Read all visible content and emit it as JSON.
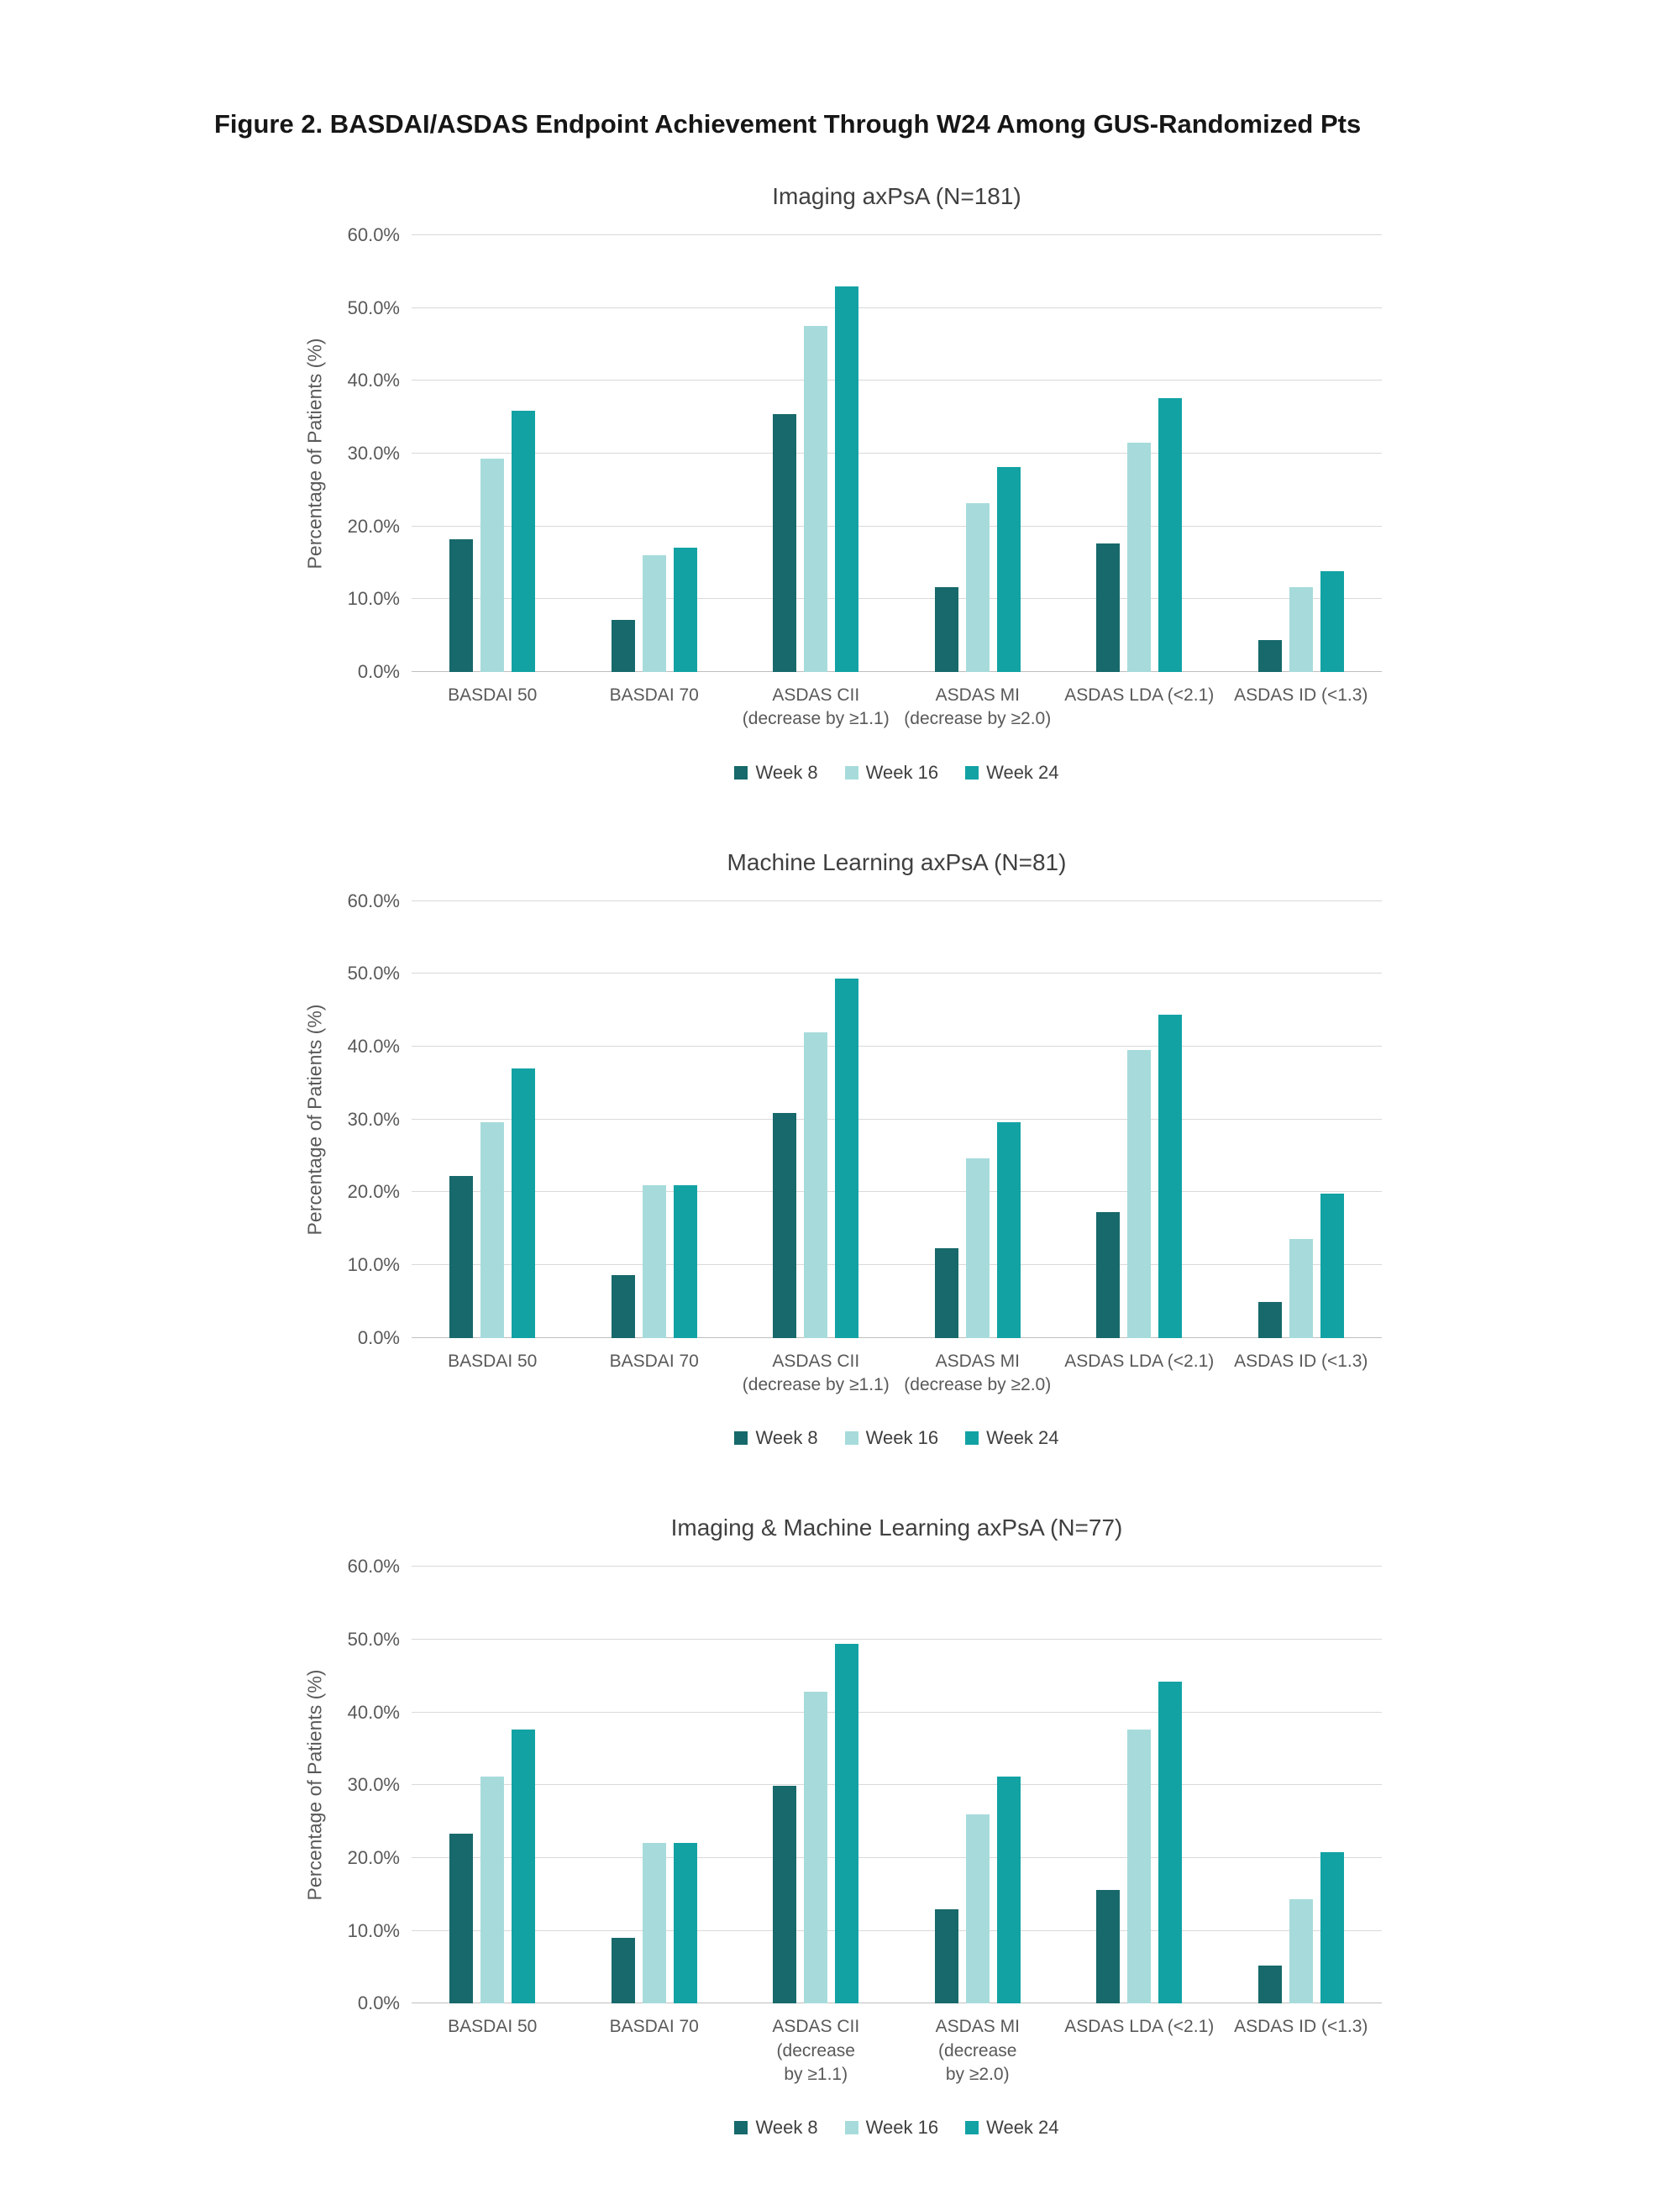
{
  "page": {
    "title": "Figure 2. BASDAI/ASDAS Endpoint Achievement Through W24 Among GUS-Randomized Pts"
  },
  "colors": {
    "series": [
      "#17696b",
      "#a7dbdb",
      "#12a2a4"
    ],
    "gridline": "#d9d9d9",
    "axis_line": "#bfbfbf",
    "title_text": "#404040",
    "tick_text": "#595959"
  },
  "chart_data": [
    {
      "type": "bar",
      "title": "Imaging axPsA (N=181)",
      "ylabel": "Percentage of Patients (%)",
      "ylim": [
        0,
        60
      ],
      "ytick_step": 10,
      "ytick_labels": [
        "0.0%",
        "10.0%",
        "20.0%",
        "30.0%",
        "40.0%",
        "50.0%",
        "60.0%"
      ],
      "grid": true,
      "legend_position": "bottom",
      "categories": [
        "BASDAI 50",
        "BASDAI 70",
        "ASDAS CII\n(decrease by ≥1.1)",
        "ASDAS MI\n(decrease by ≥2.0)",
        "ASDAS LDA (<2.1)",
        "ASDAS ID (<1.3)"
      ],
      "series": [
        {
          "name": "Week 8",
          "values": [
            18.2,
            7.2,
            35.4,
            11.6,
            17.7,
            4.4
          ]
        },
        {
          "name": "Week 16",
          "values": [
            29.3,
            16.0,
            47.5,
            23.2,
            31.5,
            11.6
          ]
        },
        {
          "name": "Week 24",
          "values": [
            35.9,
            17.1,
            53.0,
            28.2,
            37.6,
            13.8
          ]
        }
      ]
    },
    {
      "type": "bar",
      "title": "Machine Learning axPsA (N=81)",
      "ylabel": "Percentage of Patients (%)",
      "ylim": [
        0,
        60
      ],
      "ytick_step": 10,
      "ytick_labels": [
        "0.0%",
        "10.0%",
        "20.0%",
        "30.0%",
        "40.0%",
        "50.0%",
        "60.0%"
      ],
      "grid": true,
      "legend_position": "bottom",
      "categories": [
        "BASDAI 50",
        "BASDAI 70",
        "ASDAS CII\n(decrease by ≥1.1)",
        "ASDAS MI\n(decrease by ≥2.0)",
        "ASDAS LDA (<2.1)",
        "ASDAS ID (<1.3)"
      ],
      "series": [
        {
          "name": "Week 8",
          "values": [
            22.2,
            8.6,
            30.9,
            12.3,
            17.3,
            4.9
          ]
        },
        {
          "name": "Week 16",
          "values": [
            29.6,
            21.0,
            42.0,
            24.7,
            39.5,
            13.6
          ]
        },
        {
          "name": "Week 24",
          "values": [
            37.0,
            21.0,
            49.4,
            29.6,
            44.4,
            19.8
          ]
        }
      ]
    },
    {
      "type": "bar",
      "title": "Imaging & Machine Learning axPsA (N=77)",
      "ylabel": "Percentage of Patients (%)",
      "ylim": [
        0,
        60
      ],
      "ytick_step": 10,
      "ytick_labels": [
        "0.0%",
        "10.0%",
        "20.0%",
        "30.0%",
        "40.0%",
        "50.0%",
        "60.0%"
      ],
      "grid": true,
      "legend_position": "bottom",
      "categories": [
        "BASDAI 50",
        "BASDAI 70",
        "ASDAS CII  (decrease\nby ≥1.1)",
        "ASDAS MI (decrease\nby ≥2.0)",
        "ASDAS LDA (<2.1)",
        "ASDAS ID (<1.3)"
      ],
      "series": [
        {
          "name": "Week 8",
          "values": [
            23.4,
            9.1,
            29.9,
            13.0,
            15.6,
            5.2
          ]
        },
        {
          "name": "Week 16",
          "values": [
            31.2,
            22.1,
            42.9,
            26.0,
            37.7,
            14.3
          ]
        },
        {
          "name": "Week 24",
          "values": [
            37.7,
            22.1,
            49.4,
            31.2,
            44.2,
            20.8
          ]
        }
      ]
    }
  ]
}
